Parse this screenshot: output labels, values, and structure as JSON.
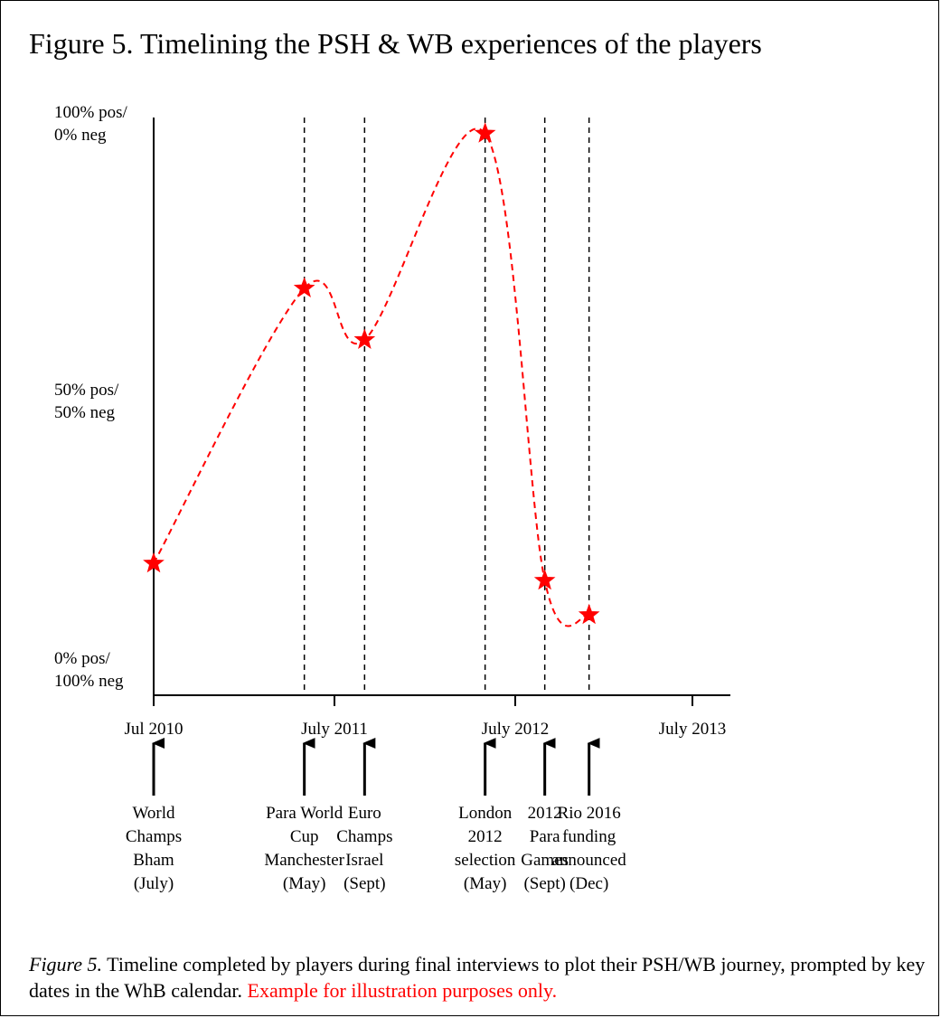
{
  "title": "Figure 5. Timelining the PSH & WB experiences of the players",
  "chart_data": {
    "type": "line",
    "y_ticks": [
      {
        "value": 100,
        "lines": [
          "100% pos/",
          "0% neg"
        ]
      },
      {
        "value": 50,
        "lines": [
          "50% pos/",
          "50% neg"
        ]
      },
      {
        "value": 0,
        "lines": [
          "0% pos/",
          "100% neg"
        ]
      }
    ],
    "x_ticks": [
      "Jul 2010",
      "July 2011",
      "July 2012",
      "July 2013"
    ],
    "ylim": [
      0,
      100
    ],
    "line_style": "dashed",
    "series": [
      {
        "color": "#ff0000",
        "marker": "star",
        "points": [
          {
            "x": "Jul 2010",
            "y": 23
          },
          {
            "x": "May 2011",
            "y": 71
          },
          {
            "x": "Sept 2011",
            "y": 62
          },
          {
            "x": "May 2012",
            "y": 98
          },
          {
            "x": "Sept 2012",
            "y": 20
          },
          {
            "x": "Dec 2012",
            "y": 14
          }
        ]
      }
    ],
    "events": [
      {
        "date": "Jul 2010",
        "lines": [
          "World",
          "Champs",
          "Bham",
          "(July)"
        ]
      },
      {
        "date": "May 2011",
        "lines": [
          "Para World",
          "Cup",
          "Manchester",
          "(May)"
        ]
      },
      {
        "date": "Sept 2011",
        "lines": [
          "Euro",
          "Champs",
          "Israel",
          "(Sept)"
        ]
      },
      {
        "date": "May 2012",
        "lines": [
          "London",
          "2012",
          "selection",
          "(May)"
        ]
      },
      {
        "date": "Sept 2012",
        "lines": [
          "2012",
          "Para",
          "Games",
          "(Sept)"
        ]
      },
      {
        "date": "Dec 2012",
        "lines": [
          "Rio 2016",
          "funding",
          "announced",
          "(Dec)"
        ]
      }
    ]
  },
  "caption": {
    "figure_label": "Figure 5.",
    "text": " Timeline completed by players during final interviews to plot their PSH/WB journey, prompted by key dates in the WhB calendar. ",
    "note": "Example for illustration purposes only.",
    "note_color": "#ff0000"
  }
}
